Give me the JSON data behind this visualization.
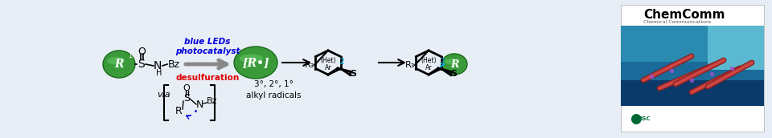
{
  "background_color": "#e8eef5",
  "blue_leds_text": "blue LEDs\nphotocatalyst",
  "desulfuration_text": "desulfuration",
  "via_text": "via",
  "alkyl_text": "3°, 2°, 1°\nalkyl radicals",
  "green_color_light": "#4aaa4a",
  "green_color_dark": "#2a7a2a",
  "blue_text_color": "#0000dd",
  "cyan_text_color": "#00aadd",
  "red_text_color": "#dd0000",
  "black_color": "#000000",
  "gray_arrow": "#999999",
  "chemcomm_white": "#ffffff"
}
